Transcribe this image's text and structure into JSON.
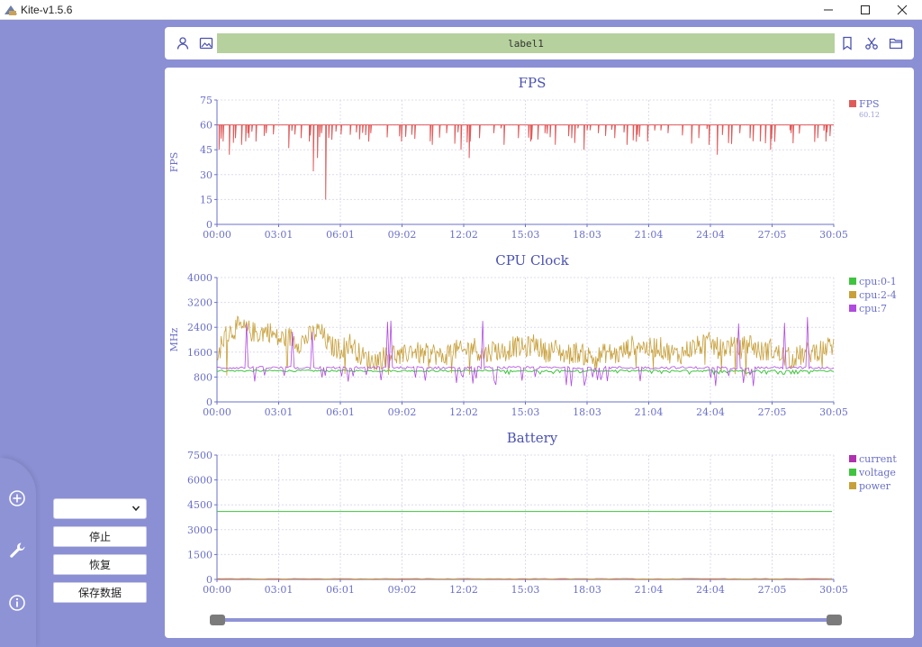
{
  "window": {
    "title": "Kite-v1.5.6",
    "controls": [
      "minimize-icon",
      "maximize-icon",
      "close-icon"
    ]
  },
  "sidebar": {
    "icons": [
      "add-circle-icon",
      "wrench-icon",
      "info-icon"
    ]
  },
  "controls": {
    "select_value": "",
    "stop_label": "停止",
    "resume_label": "恢复",
    "save_label": "保存数据"
  },
  "topbar": {
    "left_icons": [
      "user-icon",
      "image-icon"
    ],
    "label_text": "label1",
    "label_color": "#b6d19d",
    "right_icons": [
      "bookmark-icon",
      "scissors-icon",
      "folder-icon"
    ]
  },
  "colors": {
    "background": "#8b90d4",
    "axis": "#6a70c8",
    "fps": "#e05a5a",
    "cpu_0_1": "#3ec43e",
    "cpu_2_4": "#c8a03a",
    "cpu_7": "#b04ae0",
    "current": "#b030b0",
    "voltage": "#3ec43e",
    "power": "#c8a03a",
    "title": "#4a52b0"
  },
  "time_axis": [
    "00:00",
    "03:01",
    "06:01",
    "09:02",
    "12:02",
    "15:03",
    "18:03",
    "21:04",
    "24:04",
    "27:05",
    "30:05"
  ],
  "chart_data": [
    {
      "type": "line",
      "title": "FPS",
      "ylabel": "FPS",
      "ylim": [
        0,
        75
      ],
      "yticks": [
        "75",
        "60",
        "45",
        "30",
        "15",
        "0"
      ],
      "grid": true,
      "legend": "top-right",
      "series": [
        {
          "name": "FPS",
          "value_label": "60.12",
          "color": "#e05a5a",
          "baseline": 60,
          "dips": [
            [
              0.1,
              45
            ],
            [
              0.3,
              50
            ],
            [
              0.6,
              42
            ],
            [
              0.9,
              52
            ],
            [
              1.2,
              48
            ],
            [
              1.5,
              55
            ],
            [
              1.9,
              50
            ],
            [
              2.4,
              55
            ],
            [
              3.5,
              46
            ],
            [
              4.1,
              52
            ],
            [
              4.5,
              50
            ],
            [
              4.7,
              32
            ],
            [
              4.9,
              40
            ],
            [
              5.1,
              55
            ],
            [
              5.3,
              15
            ],
            [
              5.8,
              56
            ],
            [
              6.5,
              54
            ],
            [
              7.5,
              55
            ],
            [
              9.0,
              50
            ],
            [
              9.5,
              54
            ],
            [
              10.5,
              48
            ],
            [
              11.2,
              55
            ],
            [
              11.9,
              45
            ],
            [
              12.3,
              40
            ],
            [
              12.8,
              52
            ],
            [
              13.5,
              55
            ],
            [
              14.0,
              48
            ],
            [
              14.7,
              52
            ],
            [
              15.3,
              50
            ],
            [
              16.0,
              55
            ],
            [
              16.5,
              48
            ],
            [
              17.3,
              52
            ],
            [
              17.9,
              45
            ],
            [
              18.6,
              55
            ],
            [
              19.4,
              52
            ],
            [
              20.0,
              48
            ],
            [
              20.5,
              54
            ],
            [
              21.0,
              50
            ],
            [
              22.0,
              55
            ],
            [
              23.5,
              52
            ],
            [
              24.0,
              48
            ],
            [
              24.4,
              42
            ],
            [
              25.5,
              55
            ],
            [
              26.0,
              52
            ],
            [
              26.5,
              50
            ],
            [
              27.0,
              45
            ],
            [
              28.0,
              55
            ],
            [
              29.3,
              52
            ],
            [
              29.7,
              50
            ]
          ]
        }
      ]
    },
    {
      "type": "line",
      "title": "CPU Clock",
      "ylabel": "MHz",
      "ylim": [
        0,
        4000
      ],
      "yticks": [
        "4000",
        "3200",
        "2400",
        "1600",
        "800",
        "0"
      ],
      "grid": true,
      "legend": "top-right",
      "series": [
        {
          "name": "cpu:0-1",
          "color": "#3ec43e",
          "approx_level": 1000
        },
        {
          "name": "cpu:2-4",
          "color": "#c8a03a",
          "profile": [
            [
              0.0,
              1100
            ],
            [
              0.2,
              1900
            ],
            [
              0.5,
              2200
            ],
            [
              1.0,
              2400
            ],
            [
              1.5,
              2300
            ],
            [
              2.0,
              2200
            ],
            [
              2.5,
              2300
            ],
            [
              3.0,
              2000
            ],
            [
              3.5,
              2100
            ],
            [
              4.0,
              1900
            ],
            [
              4.5,
              2100
            ],
            [
              5.0,
              2300
            ],
            [
              5.5,
              1800
            ],
            [
              6.0,
              1700
            ],
            [
              6.5,
              1900
            ],
            [
              7.0,
              1500
            ],
            [
              7.5,
              1300
            ],
            [
              8.0,
              1400
            ],
            [
              8.5,
              1600
            ],
            [
              9.0,
              1400
            ],
            [
              9.5,
              1700
            ],
            [
              10.0,
              1500
            ],
            [
              10.5,
              1600
            ],
            [
              11.0,
              1400
            ],
            [
              11.5,
              1700
            ],
            [
              12.0,
              1600
            ],
            [
              12.5,
              1800
            ],
            [
              13.0,
              1500
            ],
            [
              13.5,
              1700
            ],
            [
              14.0,
              1600
            ],
            [
              14.5,
              1800
            ],
            [
              15.0,
              1700
            ],
            [
              15.5,
              1900
            ],
            [
              16.0,
              1600
            ],
            [
              16.5,
              1700
            ],
            [
              17.0,
              1500
            ],
            [
              17.5,
              1600
            ],
            [
              18.0,
              1500
            ],
            [
              18.5,
              1400
            ],
            [
              19.0,
              1600
            ],
            [
              19.5,
              1500
            ],
            [
              20.0,
              1700
            ],
            [
              20.5,
              1900
            ],
            [
              21.0,
              1700
            ],
            [
              21.5,
              1800
            ],
            [
              22.0,
              1600
            ],
            [
              22.5,
              1500
            ],
            [
              23.0,
              1700
            ],
            [
              23.5,
              1800
            ],
            [
              24.0,
              1900
            ],
            [
              24.5,
              1700
            ],
            [
              25.0,
              1800
            ],
            [
              25.5,
              1700
            ],
            [
              26.0,
              1900
            ],
            [
              26.5,
              1600
            ],
            [
              27.0,
              1700
            ],
            [
              27.5,
              1500
            ],
            [
              28.0,
              1400
            ],
            [
              28.5,
              1500
            ],
            [
              29.0,
              1600
            ],
            [
              29.5,
              1700
            ],
            [
              30.0,
              1800
            ]
          ]
        },
        {
          "name": "cpu:7",
          "color": "#b04ae0",
          "approx_level": 1100
        }
      ]
    },
    {
      "type": "line",
      "title": "Battery",
      "ylabel": "",
      "ylim": [
        0,
        7500
      ],
      "yticks": [
        "7500",
        "6000",
        "4500",
        "3000",
        "1500",
        "0"
      ],
      "grid": true,
      "legend": "top-right",
      "series": [
        {
          "name": "current",
          "color": "#b030b0",
          "approx_level": 10
        },
        {
          "name": "voltage",
          "color": "#3ec43e",
          "approx_level": 4100
        },
        {
          "name": "power",
          "color": "#c8a03a",
          "approx_level": 20
        }
      ]
    }
  ],
  "slider": {
    "start": 0.0,
    "end": 1.0
  }
}
